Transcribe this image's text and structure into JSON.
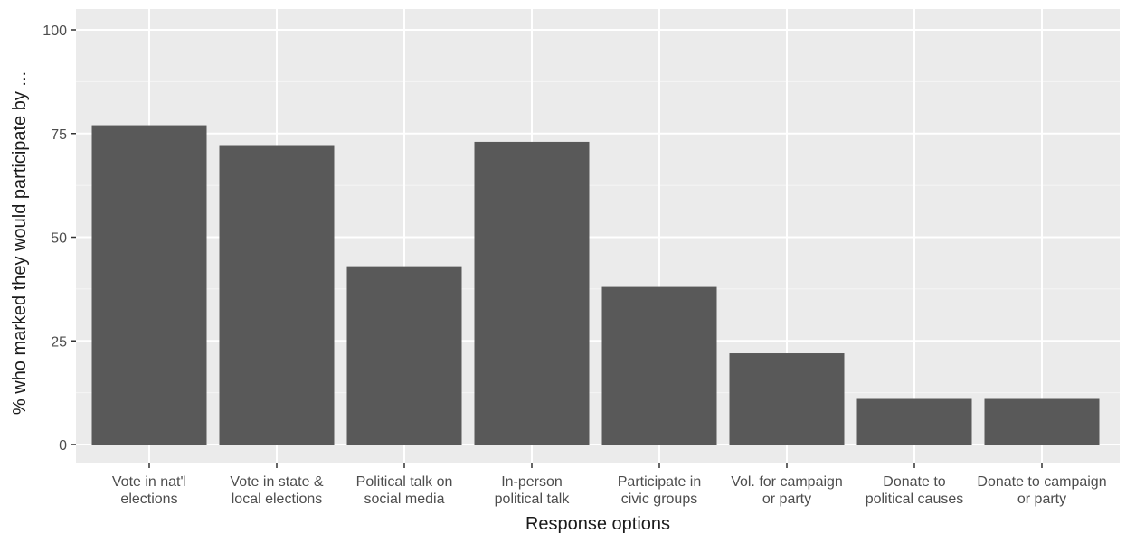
{
  "chart_data": {
    "type": "bar",
    "title": "",
    "xlabel": "Response options",
    "ylabel": "% who marked they would participate by ...",
    "ylim": [
      0,
      100
    ],
    "yticks": [
      0,
      25,
      50,
      75,
      100
    ],
    "categories": [
      [
        "Vote in nat'l",
        "elections"
      ],
      [
        "Vote in state &",
        "local elections"
      ],
      [
        "Political talk on",
        "social media"
      ],
      [
        "In-person",
        "political talk"
      ],
      [
        "Participate in",
        "civic groups"
      ],
      [
        "Vol. for campaign",
        "or party"
      ],
      [
        "Donate to",
        "political causes"
      ],
      [
        "Donate to campaign",
        "or party"
      ]
    ],
    "values": [
      77,
      72,
      43,
      73,
      38,
      22,
      11,
      11
    ],
    "grid": true,
    "colors": {
      "bar": "#595959",
      "panel": "#ebebeb",
      "grid_major": "#ffffff",
      "grid_minor": "#f5f5f5",
      "tick": "#333333"
    }
  }
}
